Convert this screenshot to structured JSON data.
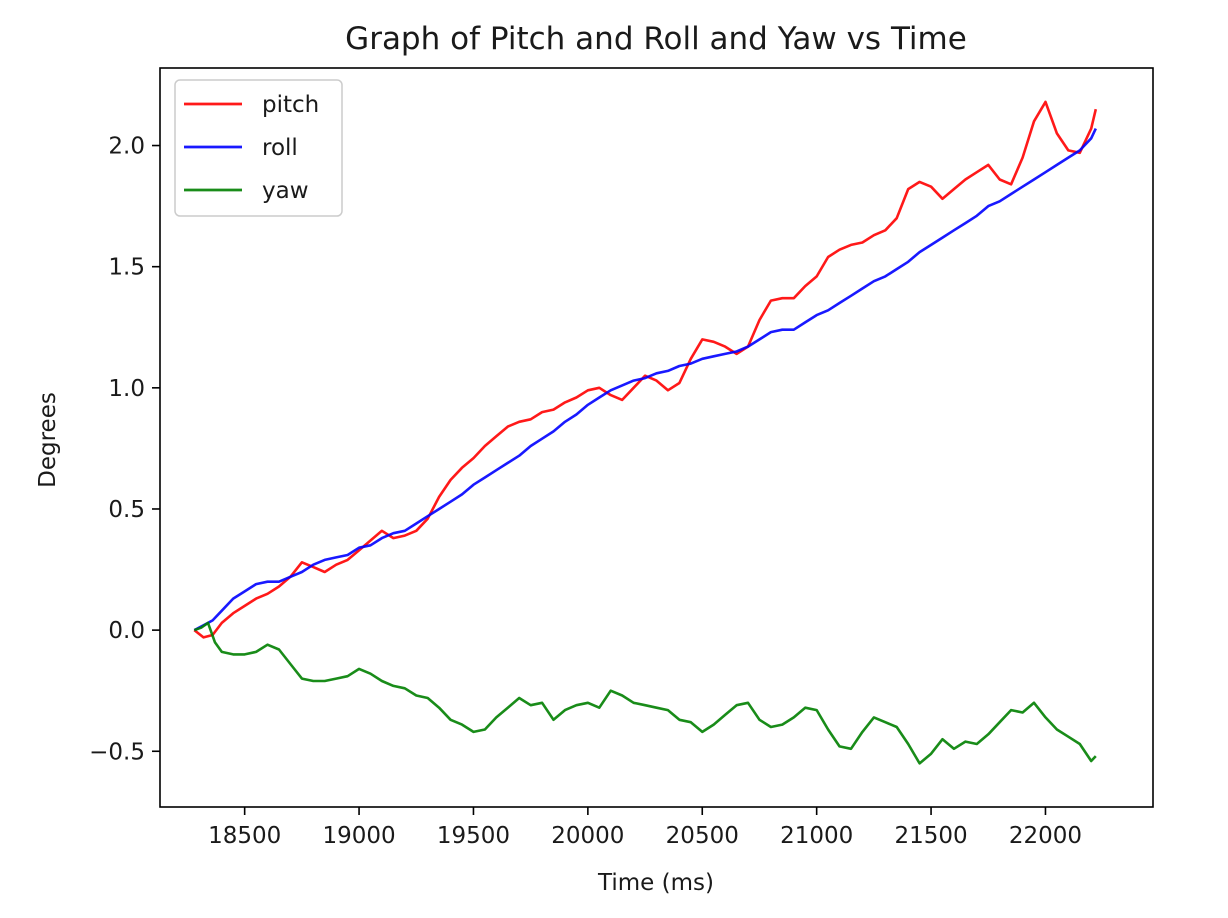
{
  "chart_data": {
    "type": "line",
    "title": "Graph of Pitch and Roll and Yaw vs Time",
    "xlabel": "Time (ms)",
    "ylabel": "Degrees",
    "xlim": [
      18130,
      22470
    ],
    "ylim": [
      -0.73,
      2.32
    ],
    "xticks": [
      18500,
      19000,
      19500,
      20000,
      20500,
      21000,
      21500,
      22000
    ],
    "xtick_labels": [
      "18500",
      "19000",
      "19500",
      "20000",
      "20500",
      "21000",
      "21500",
      "22000"
    ],
    "yticks": [
      -0.5,
      0.0,
      0.5,
      1.0,
      1.5,
      2.0
    ],
    "ytick_labels": [
      "−0.5",
      "0.0",
      "0.5",
      "1.0",
      "1.5",
      "2.0"
    ],
    "grid": false,
    "legend_position": "top-left",
    "series": [
      {
        "name": "pitch",
        "color": "#ff0000",
        "points": [
          [
            18280,
            0.0
          ],
          [
            18320,
            -0.03
          ],
          [
            18360,
            -0.02
          ],
          [
            18400,
            0.03
          ],
          [
            18450,
            0.07
          ],
          [
            18500,
            0.1
          ],
          [
            18550,
            0.13
          ],
          [
            18600,
            0.15
          ],
          [
            18650,
            0.18
          ],
          [
            18700,
            0.22
          ],
          [
            18750,
            0.28
          ],
          [
            18800,
            0.26
          ],
          [
            18850,
            0.24
          ],
          [
            18900,
            0.27
          ],
          [
            18950,
            0.29
          ],
          [
            19000,
            0.33
          ],
          [
            19050,
            0.37
          ],
          [
            19100,
            0.41
          ],
          [
            19150,
            0.38
          ],
          [
            19200,
            0.39
          ],
          [
            19250,
            0.41
          ],
          [
            19300,
            0.46
          ],
          [
            19350,
            0.55
          ],
          [
            19400,
            0.62
          ],
          [
            19450,
            0.67
          ],
          [
            19500,
            0.71
          ],
          [
            19550,
            0.76
          ],
          [
            19600,
            0.8
          ],
          [
            19650,
            0.84
          ],
          [
            19700,
            0.86
          ],
          [
            19750,
            0.87
          ],
          [
            19800,
            0.9
          ],
          [
            19850,
            0.91
          ],
          [
            19900,
            0.94
          ],
          [
            19950,
            0.96
          ],
          [
            20000,
            0.99
          ],
          [
            20050,
            1.0
          ],
          [
            20100,
            0.97
          ],
          [
            20150,
            0.95
          ],
          [
            20200,
            1.0
          ],
          [
            20250,
            1.05
          ],
          [
            20300,
            1.03
          ],
          [
            20350,
            0.99
          ],
          [
            20400,
            1.02
          ],
          [
            20450,
            1.12
          ],
          [
            20500,
            1.2
          ],
          [
            20550,
            1.19
          ],
          [
            20600,
            1.17
          ],
          [
            20650,
            1.14
          ],
          [
            20700,
            1.17
          ],
          [
            20750,
            1.28
          ],
          [
            20800,
            1.36
          ],
          [
            20850,
            1.37
          ],
          [
            20900,
            1.37
          ],
          [
            20950,
            1.42
          ],
          [
            21000,
            1.46
          ],
          [
            21050,
            1.54
          ],
          [
            21100,
            1.57
          ],
          [
            21150,
            1.59
          ],
          [
            21200,
            1.6
          ],
          [
            21250,
            1.63
          ],
          [
            21300,
            1.65
          ],
          [
            21350,
            1.7
          ],
          [
            21400,
            1.82
          ],
          [
            21450,
            1.85
          ],
          [
            21500,
            1.83
          ],
          [
            21550,
            1.78
          ],
          [
            21600,
            1.82
          ],
          [
            21650,
            1.86
          ],
          [
            21700,
            1.89
          ],
          [
            21750,
            1.92
          ],
          [
            21800,
            1.86
          ],
          [
            21850,
            1.84
          ],
          [
            21900,
            1.95
          ],
          [
            21950,
            2.1
          ],
          [
            22000,
            2.18
          ],
          [
            22050,
            2.05
          ],
          [
            22100,
            1.98
          ],
          [
            22150,
            1.97
          ],
          [
            22200,
            2.07
          ],
          [
            22220,
            2.15
          ]
        ]
      },
      {
        "name": "roll",
        "color": "#0000ff",
        "points": [
          [
            18280,
            0.0
          ],
          [
            18320,
            0.02
          ],
          [
            18360,
            0.04
          ],
          [
            18400,
            0.08
          ],
          [
            18450,
            0.13
          ],
          [
            18500,
            0.16
          ],
          [
            18550,
            0.19
          ],
          [
            18600,
            0.2
          ],
          [
            18650,
            0.2
          ],
          [
            18700,
            0.22
          ],
          [
            18750,
            0.24
          ],
          [
            18800,
            0.27
          ],
          [
            18850,
            0.29
          ],
          [
            18900,
            0.3
          ],
          [
            18950,
            0.31
          ],
          [
            19000,
            0.34
          ],
          [
            19050,
            0.35
          ],
          [
            19100,
            0.38
          ],
          [
            19150,
            0.4
          ],
          [
            19200,
            0.41
          ],
          [
            19250,
            0.44
          ],
          [
            19300,
            0.47
          ],
          [
            19350,
            0.5
          ],
          [
            19400,
            0.53
          ],
          [
            19450,
            0.56
          ],
          [
            19500,
            0.6
          ],
          [
            19550,
            0.63
          ],
          [
            19600,
            0.66
          ],
          [
            19650,
            0.69
          ],
          [
            19700,
            0.72
          ],
          [
            19750,
            0.76
          ],
          [
            19800,
            0.79
          ],
          [
            19850,
            0.82
          ],
          [
            19900,
            0.86
          ],
          [
            19950,
            0.89
          ],
          [
            20000,
            0.93
          ],
          [
            20050,
            0.96
          ],
          [
            20100,
            0.99
          ],
          [
            20150,
            1.01
          ],
          [
            20200,
            1.03
          ],
          [
            20250,
            1.04
          ],
          [
            20300,
            1.06
          ],
          [
            20350,
            1.07
          ],
          [
            20400,
            1.09
          ],
          [
            20450,
            1.1
          ],
          [
            20500,
            1.12
          ],
          [
            20550,
            1.13
          ],
          [
            20600,
            1.14
          ],
          [
            20650,
            1.15
          ],
          [
            20700,
            1.17
          ],
          [
            20750,
            1.2
          ],
          [
            20800,
            1.23
          ],
          [
            20850,
            1.24
          ],
          [
            20900,
            1.24
          ],
          [
            20950,
            1.27
          ],
          [
            21000,
            1.3
          ],
          [
            21050,
            1.32
          ],
          [
            21100,
            1.35
          ],
          [
            21150,
            1.38
          ],
          [
            21200,
            1.41
          ],
          [
            21250,
            1.44
          ],
          [
            21300,
            1.46
          ],
          [
            21350,
            1.49
          ],
          [
            21400,
            1.52
          ],
          [
            21450,
            1.56
          ],
          [
            21500,
            1.59
          ],
          [
            21550,
            1.62
          ],
          [
            21600,
            1.65
          ],
          [
            21650,
            1.68
          ],
          [
            21700,
            1.71
          ],
          [
            21750,
            1.75
          ],
          [
            21800,
            1.77
          ],
          [
            21850,
            1.8
          ],
          [
            21900,
            1.83
          ],
          [
            21950,
            1.86
          ],
          [
            22000,
            1.89
          ],
          [
            22050,
            1.92
          ],
          [
            22100,
            1.95
          ],
          [
            22150,
            1.98
          ],
          [
            22200,
            2.03
          ],
          [
            22220,
            2.07
          ]
        ]
      },
      {
        "name": "yaw",
        "color": "#008000",
        "points": [
          [
            18280,
            0.0
          ],
          [
            18310,
            0.01
          ],
          [
            18340,
            0.03
          ],
          [
            18370,
            -0.05
          ],
          [
            18400,
            -0.09
          ],
          [
            18450,
            -0.1
          ],
          [
            18500,
            -0.1
          ],
          [
            18550,
            -0.09
          ],
          [
            18600,
            -0.06
          ],
          [
            18650,
            -0.08
          ],
          [
            18700,
            -0.14
          ],
          [
            18750,
            -0.2
          ],
          [
            18800,
            -0.21
          ],
          [
            18850,
            -0.21
          ],
          [
            18900,
            -0.2
          ],
          [
            18950,
            -0.19
          ],
          [
            19000,
            -0.16
          ],
          [
            19050,
            -0.18
          ],
          [
            19100,
            -0.21
          ],
          [
            19150,
            -0.23
          ],
          [
            19200,
            -0.24
          ],
          [
            19250,
            -0.27
          ],
          [
            19300,
            -0.28
          ],
          [
            19350,
            -0.32
          ],
          [
            19400,
            -0.37
          ],
          [
            19450,
            -0.39
          ],
          [
            19500,
            -0.42
          ],
          [
            19550,
            -0.41
          ],
          [
            19600,
            -0.36
          ],
          [
            19650,
            -0.32
          ],
          [
            19700,
            -0.28
          ],
          [
            19750,
            -0.31
          ],
          [
            19800,
            -0.3
          ],
          [
            19850,
            -0.37
          ],
          [
            19900,
            -0.33
          ],
          [
            19950,
            -0.31
          ],
          [
            20000,
            -0.3
          ],
          [
            20050,
            -0.32
          ],
          [
            20100,
            -0.25
          ],
          [
            20150,
            -0.27
          ],
          [
            20200,
            -0.3
          ],
          [
            20250,
            -0.31
          ],
          [
            20300,
            -0.32
          ],
          [
            20350,
            -0.33
          ],
          [
            20400,
            -0.37
          ],
          [
            20450,
            -0.38
          ],
          [
            20500,
            -0.42
          ],
          [
            20550,
            -0.39
          ],
          [
            20600,
            -0.35
          ],
          [
            20650,
            -0.31
          ],
          [
            20700,
            -0.3
          ],
          [
            20750,
            -0.37
          ],
          [
            20800,
            -0.4
          ],
          [
            20850,
            -0.39
          ],
          [
            20900,
            -0.36
          ],
          [
            20950,
            -0.32
          ],
          [
            21000,
            -0.33
          ],
          [
            21050,
            -0.41
          ],
          [
            21100,
            -0.48
          ],
          [
            21150,
            -0.49
          ],
          [
            21200,
            -0.42
          ],
          [
            21250,
            -0.36
          ],
          [
            21300,
            -0.38
          ],
          [
            21350,
            -0.4
          ],
          [
            21400,
            -0.47
          ],
          [
            21450,
            -0.55
          ],
          [
            21500,
            -0.51
          ],
          [
            21550,
            -0.45
          ],
          [
            21600,
            -0.49
          ],
          [
            21650,
            -0.46
          ],
          [
            21700,
            -0.47
          ],
          [
            21750,
            -0.43
          ],
          [
            21800,
            -0.38
          ],
          [
            21850,
            -0.33
          ],
          [
            21900,
            -0.34
          ],
          [
            21950,
            -0.3
          ],
          [
            22000,
            -0.36
          ],
          [
            22050,
            -0.41
          ],
          [
            22100,
            -0.44
          ],
          [
            22150,
            -0.47
          ],
          [
            22200,
            -0.54
          ],
          [
            22220,
            -0.52
          ]
        ]
      }
    ]
  }
}
